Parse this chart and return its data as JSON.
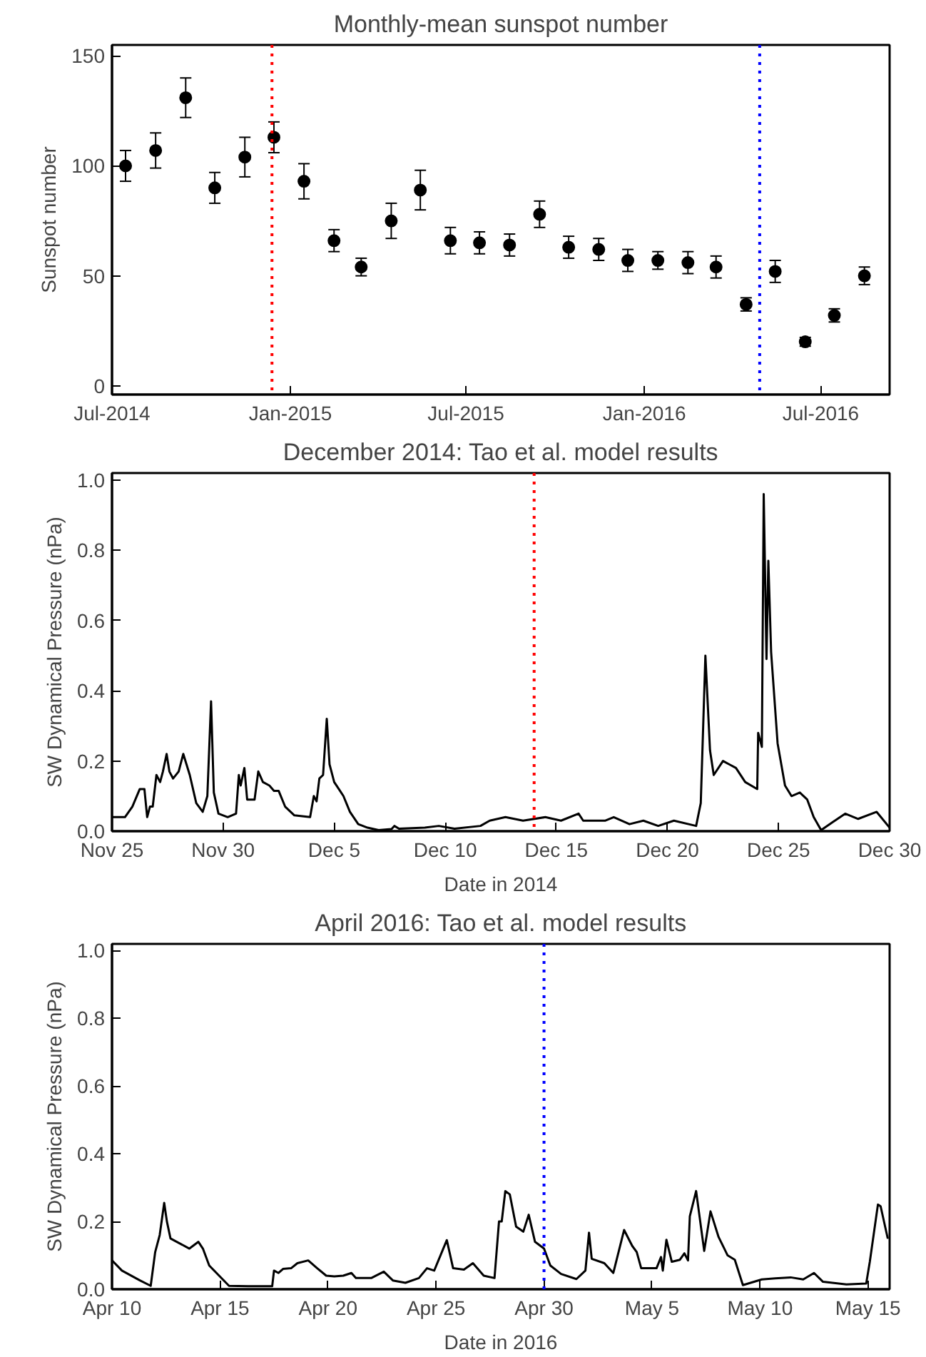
{
  "chart_data": [
    {
      "type": "scatter",
      "title": "Monthly-mean sunspot number",
      "ylabel": "Sunspot number",
      "marker": "circle",
      "grid": false,
      "x": [
        "2014-07-15",
        "2014-08-15",
        "2014-09-15",
        "2014-10-15",
        "2014-11-15",
        "2014-12-15",
        "2015-01-15",
        "2015-02-15",
        "2015-03-15",
        "2015-04-15",
        "2015-05-15",
        "2015-06-15",
        "2015-07-15",
        "2015-08-15",
        "2015-09-15",
        "2015-10-15",
        "2015-11-15",
        "2015-12-15",
        "2016-01-15",
        "2016-02-15",
        "2016-03-15",
        "2016-04-15",
        "2016-05-15",
        "2016-06-15",
        "2016-07-15",
        "2016-08-15"
      ],
      "series": [
        {
          "color": "#000000",
          "values": [
            100,
            107,
            131,
            90,
            104,
            113,
            93,
            66,
            54,
            75,
            89,
            66,
            65,
            64,
            78,
            63,
            62,
            57,
            57,
            56,
            54,
            37,
            52,
            20,
            32,
            50
          ],
          "errors": [
            7,
            8,
            9,
            7,
            9,
            7,
            8,
            5,
            4,
            8,
            9,
            6,
            5,
            5,
            6,
            5,
            5,
            5,
            4,
            5,
            5,
            3,
            5,
            2,
            3,
            4
          ]
        }
      ],
      "xlim": [
        "2014-07-01",
        "2016-09-10"
      ],
      "xticks": [
        {
          "value": "2014-07-01",
          "label": "Jul-2014"
        },
        {
          "value": "2015-01-01",
          "label": "Jan-2015"
        },
        {
          "value": "2015-07-01",
          "label": "Jul-2015"
        },
        {
          "value": "2016-01-01",
          "label": "Jan-2016"
        },
        {
          "value": "2016-07-01",
          "label": "Jul-2016"
        }
      ],
      "ylim": [
        -4,
        155
      ],
      "yticks": [
        0,
        50,
        100,
        150
      ],
      "ref_lines": [
        {
          "axis": "x",
          "value": "2014-12-13",
          "color": "#ff0000",
          "line_style": "dotted"
        },
        {
          "axis": "x",
          "value": "2016-04-29",
          "color": "#0000ff",
          "line_style": "dotted"
        }
      ]
    },
    {
      "type": "line",
      "title": "December 2014: Tao et al. model results",
      "xlabel": "Date in 2014",
      "ylabel": "SW Dynamical Pressure (nPa)",
      "grid": false,
      "marker": "none",
      "line_style": "solid",
      "x": [
        "2014-11-25T00:00",
        "2014-11-25T14:00",
        "2014-11-25T22:00",
        "2014-11-26T06:00",
        "2014-11-26T11:00",
        "2014-11-26T14:00",
        "2014-11-26T17:00",
        "2014-11-26T20:00",
        "2014-11-27T00:00",
        "2014-11-27T04:00",
        "2014-11-27T07:00",
        "2014-11-27T11:00",
        "2014-11-27T14:00",
        "2014-11-27T18:00",
        "2014-11-28T00:00",
        "2014-11-28T05:00",
        "2014-11-28T12:00",
        "2014-11-28T19:00",
        "2014-11-29T02:00",
        "2014-11-29T07:00",
        "2014-11-29T11:00",
        "2014-11-29T14:00",
        "2014-11-29T19:00",
        "2014-11-30T05:00",
        "2014-11-30T14:00",
        "2014-11-30T17:00",
        "2014-11-30T19:00",
        "2014-11-30T23:00",
        "2014-12-01T02:00",
        "2014-12-01T10:00",
        "2014-12-01T14:00",
        "2014-12-01T19:00",
        "2014-12-02T02:00",
        "2014-12-02T07:00",
        "2014-12-02T12:00",
        "2014-12-02T19:00",
        "2014-12-03T05:00",
        "2014-12-03T22:00",
        "2014-12-04T02:00",
        "2014-12-04T05:00",
        "2014-12-04T08:00",
        "2014-12-04T12:00",
        "2014-12-04T16:00",
        "2014-12-04T19:00",
        "2014-12-05T00:00",
        "2014-12-05T05:00",
        "2014-12-05T10:00",
        "2014-12-05T17:00",
        "2014-12-06T02:00",
        "2014-12-06T12:00",
        "2014-12-07T00:00",
        "2014-12-07T14:00",
        "2014-12-07T17:00",
        "2014-12-07T22:00",
        "2014-12-09T02:00",
        "2014-12-09T17:00",
        "2014-12-10T10:00",
        "2014-12-11T14:00",
        "2014-12-12T00:00",
        "2014-12-12T17:00",
        "2014-12-13T12:00",
        "2014-12-14T12:00",
        "2014-12-15T05:00",
        "2014-12-16T00:00",
        "2014-12-16T05:00",
        "2014-12-17T05:00",
        "2014-12-17T14:00",
        "2014-12-18T07:00",
        "2014-12-18T22:00",
        "2014-12-19T14:00",
        "2014-12-20T07:00",
        "2014-12-21T07:00",
        "2014-12-21T12:00",
        "2014-12-21T17:00",
        "2014-12-21T22:00",
        "2014-12-22T02:00",
        "2014-12-22T12:00",
        "2014-12-22T19:00",
        "2014-12-23T02:00",
        "2014-12-23T12:00",
        "2014-12-24T01:00",
        "2014-12-24T02:00",
        "2014-12-24T06:00",
        "2014-12-24T08:00",
        "2014-12-24T11:00",
        "2014-12-24T13:00",
        "2014-12-24T16:00",
        "2014-12-24T23:00",
        "2014-12-25T07:00",
        "2014-12-25T14:00",
        "2014-12-25T23:00",
        "2014-12-26T07:00",
        "2014-12-26T14:00",
        "2014-12-26T22:00",
        "2014-12-27T10:00",
        "2014-12-28T00:00",
        "2014-12-28T14:00",
        "2014-12-29T10:00",
        "2014-12-30T00:00"
      ],
      "series": [
        {
          "color": "#000000",
          "values": [
            0.04,
            0.04,
            0.07,
            0.12,
            0.12,
            0.04,
            0.07,
            0.07,
            0.16,
            0.14,
            0.17,
            0.22,
            0.17,
            0.15,
            0.17,
            0.22,
            0.16,
            0.08,
            0.055,
            0.1,
            0.37,
            0.11,
            0.05,
            0.04,
            0.05,
            0.16,
            0.13,
            0.18,
            0.09,
            0.09,
            0.17,
            0.14,
            0.13,
            0.115,
            0.115,
            0.07,
            0.045,
            0.04,
            0.1,
            0.085,
            0.15,
            0.16,
            0.32,
            0.19,
            0.14,
            0.12,
            0.1,
            0.055,
            0.02,
            0.01,
            0.003,
            0.006,
            0.015,
            0.007,
            0.01,
            0.015,
            0.007,
            0.015,
            0.03,
            0.04,
            0.03,
            0.04,
            0.03,
            0.05,
            0.03,
            0.03,
            0.04,
            0.02,
            0.03,
            0.015,
            0.03,
            0.015,
            0.08,
            0.5,
            0.23,
            0.16,
            0.2,
            0.19,
            0.18,
            0.14,
            0.12,
            0.28,
            0.24,
            0.96,
            0.49,
            0.77,
            0.51,
            0.25,
            0.13,
            0.1,
            0.11,
            0.09,
            0.04,
            0.003,
            0.025,
            0.05,
            0.035,
            0.055,
            0.01
          ]
        }
      ],
      "xlim": [
        "2014-11-25",
        "2014-12-30"
      ],
      "xticks": [
        {
          "value": "2014-11-25",
          "label": "Nov 25"
        },
        {
          "value": "2014-11-30",
          "label": "Nov 30"
        },
        {
          "value": "2014-12-05",
          "label": "Dec 5"
        },
        {
          "value": "2014-12-10",
          "label": "Dec 10"
        },
        {
          "value": "2014-12-15",
          "label": "Dec 15"
        },
        {
          "value": "2014-12-20",
          "label": "Dec 20"
        },
        {
          "value": "2014-12-25",
          "label": "Dec 25"
        },
        {
          "value": "2014-12-30",
          "label": "Dec 30"
        }
      ],
      "ylim": [
        0,
        1.02
      ],
      "yticks": [
        {
          "value": 0,
          "label": "0.0"
        },
        {
          "value": 0.2,
          "label": "0.2"
        },
        {
          "value": 0.4,
          "label": "0.4"
        },
        {
          "value": 0.6,
          "label": "0.6"
        },
        {
          "value": 0.8,
          "label": "0.8"
        },
        {
          "value": 1,
          "label": "1.0"
        }
      ],
      "ref_lines": [
        {
          "axis": "x",
          "value": "2014-12-14",
          "color": "#ff0000",
          "line_style": "dotted"
        }
      ]
    },
    {
      "type": "line",
      "title": "April 2016: Tao et al. model results",
      "xlabel": "Date in 2016",
      "ylabel": "SW Dynamical Pressure (nPa)",
      "grid": false,
      "marker": "none",
      "line_style": "solid",
      "x": [
        "2016-04-10T00:00",
        "2016-04-10T11:00",
        "2016-04-11T07:00",
        "2016-04-11T19:00",
        "2016-04-12T00:00",
        "2016-04-12T05:00",
        "2016-04-12T10:00",
        "2016-04-12T13:00",
        "2016-04-12T17:00",
        "2016-04-13T00:00",
        "2016-04-13T14:00",
        "2016-04-14T00:00",
        "2016-04-14T05:00",
        "2016-04-14T12:00",
        "2016-04-14T23:00",
        "2016-04-15T10:00",
        "2016-04-16T07:00",
        "2016-04-17T10:00",
        "2016-04-17T12:00",
        "2016-04-17T17:00",
        "2016-04-17T22:00",
        "2016-04-18T07:00",
        "2016-04-18T14:00",
        "2016-04-19T02:00",
        "2016-04-19T12:00",
        "2016-04-19T22:00",
        "2016-04-20T07:00",
        "2016-04-20T17:00",
        "2016-04-21T02:00",
        "2016-04-21T07:00",
        "2016-04-21T14:00",
        "2016-04-22T00:00",
        "2016-04-22T14:00",
        "2016-04-23T00:00",
        "2016-04-23T14:00",
        "2016-04-24T05:00",
        "2016-04-24T14:00",
        "2016-04-24T22:00",
        "2016-04-25T12:00",
        "2016-04-25T19:00",
        "2016-04-26T07:00",
        "2016-04-26T17:00",
        "2016-04-27T05:00",
        "2016-04-27T17:00",
        "2016-04-27T22:00",
        "2016-04-28T01:00",
        "2016-04-28T05:00",
        "2016-04-28T10:00",
        "2016-04-28T17:00",
        "2016-04-29T01:00",
        "2016-04-29T07:00",
        "2016-04-29T14:00",
        "2016-04-30T00:00",
        "2016-04-30T07:00",
        "2016-04-30T19:00",
        "2016-05-01T12:00",
        "2016-05-01T22:00",
        "2016-05-02T02:00",
        "2016-05-02T05:00",
        "2016-05-02T19:00",
        "2016-05-03T05:00",
        "2016-05-03T17:00",
        "2016-05-04T02:00",
        "2016-05-04T07:00",
        "2016-05-04T12:00",
        "2016-05-05T05:00",
        "2016-05-05T10:00",
        "2016-05-05T12:00",
        "2016-05-05T16:00",
        "2016-05-05T22:00",
        "2016-05-06T07:00",
        "2016-05-06T12:00",
        "2016-05-06T16:00",
        "2016-05-06T18:00",
        "2016-05-07T01:00",
        "2016-05-07T10:00",
        "2016-05-07T17:00",
        "2016-05-08T02:00",
        "2016-05-08T12:00",
        "2016-05-08T20:00",
        "2016-05-08T23:00",
        "2016-05-09T05:00",
        "2016-05-10T02:00",
        "2016-05-10T17:00",
        "2016-05-11T10:00",
        "2016-05-12T00:00",
        "2016-05-12T12:00",
        "2016-05-12T22:00",
        "2016-05-14T00:00",
        "2016-05-14T22:00",
        "2016-05-15T02:00",
        "2016-05-15T11:00",
        "2016-05-15T14:00",
        "2016-05-15T22:00"
      ],
      "series": [
        {
          "color": "#000000",
          "values": [
            0.085,
            0.055,
            0.026,
            0.01,
            0.11,
            0.16,
            0.255,
            0.2,
            0.15,
            0.14,
            0.12,
            0.14,
            0.12,
            0.07,
            0.04,
            0.01,
            0.009,
            0.009,
            0.055,
            0.048,
            0.06,
            0.062,
            0.077,
            0.085,
            0.062,
            0.04,
            0.038,
            0.04,
            0.048,
            0.033,
            0.033,
            0.033,
            0.052,
            0.026,
            0.019,
            0.033,
            0.062,
            0.055,
            0.145,
            0.062,
            0.058,
            0.077,
            0.04,
            0.033,
            0.2,
            0.2,
            0.29,
            0.28,
            0.185,
            0.17,
            0.22,
            0.14,
            0.12,
            0.07,
            0.045,
            0.03,
            0.055,
            0.167,
            0.09,
            0.077,
            0.048,
            0.175,
            0.128,
            0.11,
            0.062,
            0.062,
            0.095,
            0.055,
            0.146,
            0.081,
            0.087,
            0.106,
            0.085,
            0.215,
            0.29,
            0.113,
            0.23,
            0.154,
            0.1,
            0.087,
            0.062,
            0.012,
            0.029,
            0.032,
            0.035,
            0.029,
            0.048,
            0.022,
            0.014,
            0.017,
            0.081,
            0.25,
            0.245,
            0.149
          ]
        }
      ],
      "xlim": [
        "2016-04-10",
        "2016-05-16"
      ],
      "xticks": [
        {
          "value": "2016-04-10",
          "label": "Apr 10"
        },
        {
          "value": "2016-04-15",
          "label": "Apr 15"
        },
        {
          "value": "2016-04-20",
          "label": "Apr 20"
        },
        {
          "value": "2016-04-25",
          "label": "Apr 25"
        },
        {
          "value": "2016-04-30",
          "label": "Apr 30"
        },
        {
          "value": "2016-05-05",
          "label": "May 5"
        },
        {
          "value": "2016-05-10",
          "label": "May 10"
        },
        {
          "value": "2016-05-15",
          "label": "May 15"
        }
      ],
      "ylim": [
        0,
        1.02
      ],
      "yticks": [
        {
          "value": 0,
          "label": "0.0"
        },
        {
          "value": 0.2,
          "label": "0.2"
        },
        {
          "value": 0.4,
          "label": "0.4"
        },
        {
          "value": 0.6,
          "label": "0.6"
        },
        {
          "value": 0.8,
          "label": "0.8"
        },
        {
          "value": 1,
          "label": "1.0"
        }
      ],
      "ref_lines": [
        {
          "axis": "x",
          "value": "2016-04-30",
          "color": "#0000ff",
          "line_style": "dotted"
        }
      ]
    }
  ]
}
